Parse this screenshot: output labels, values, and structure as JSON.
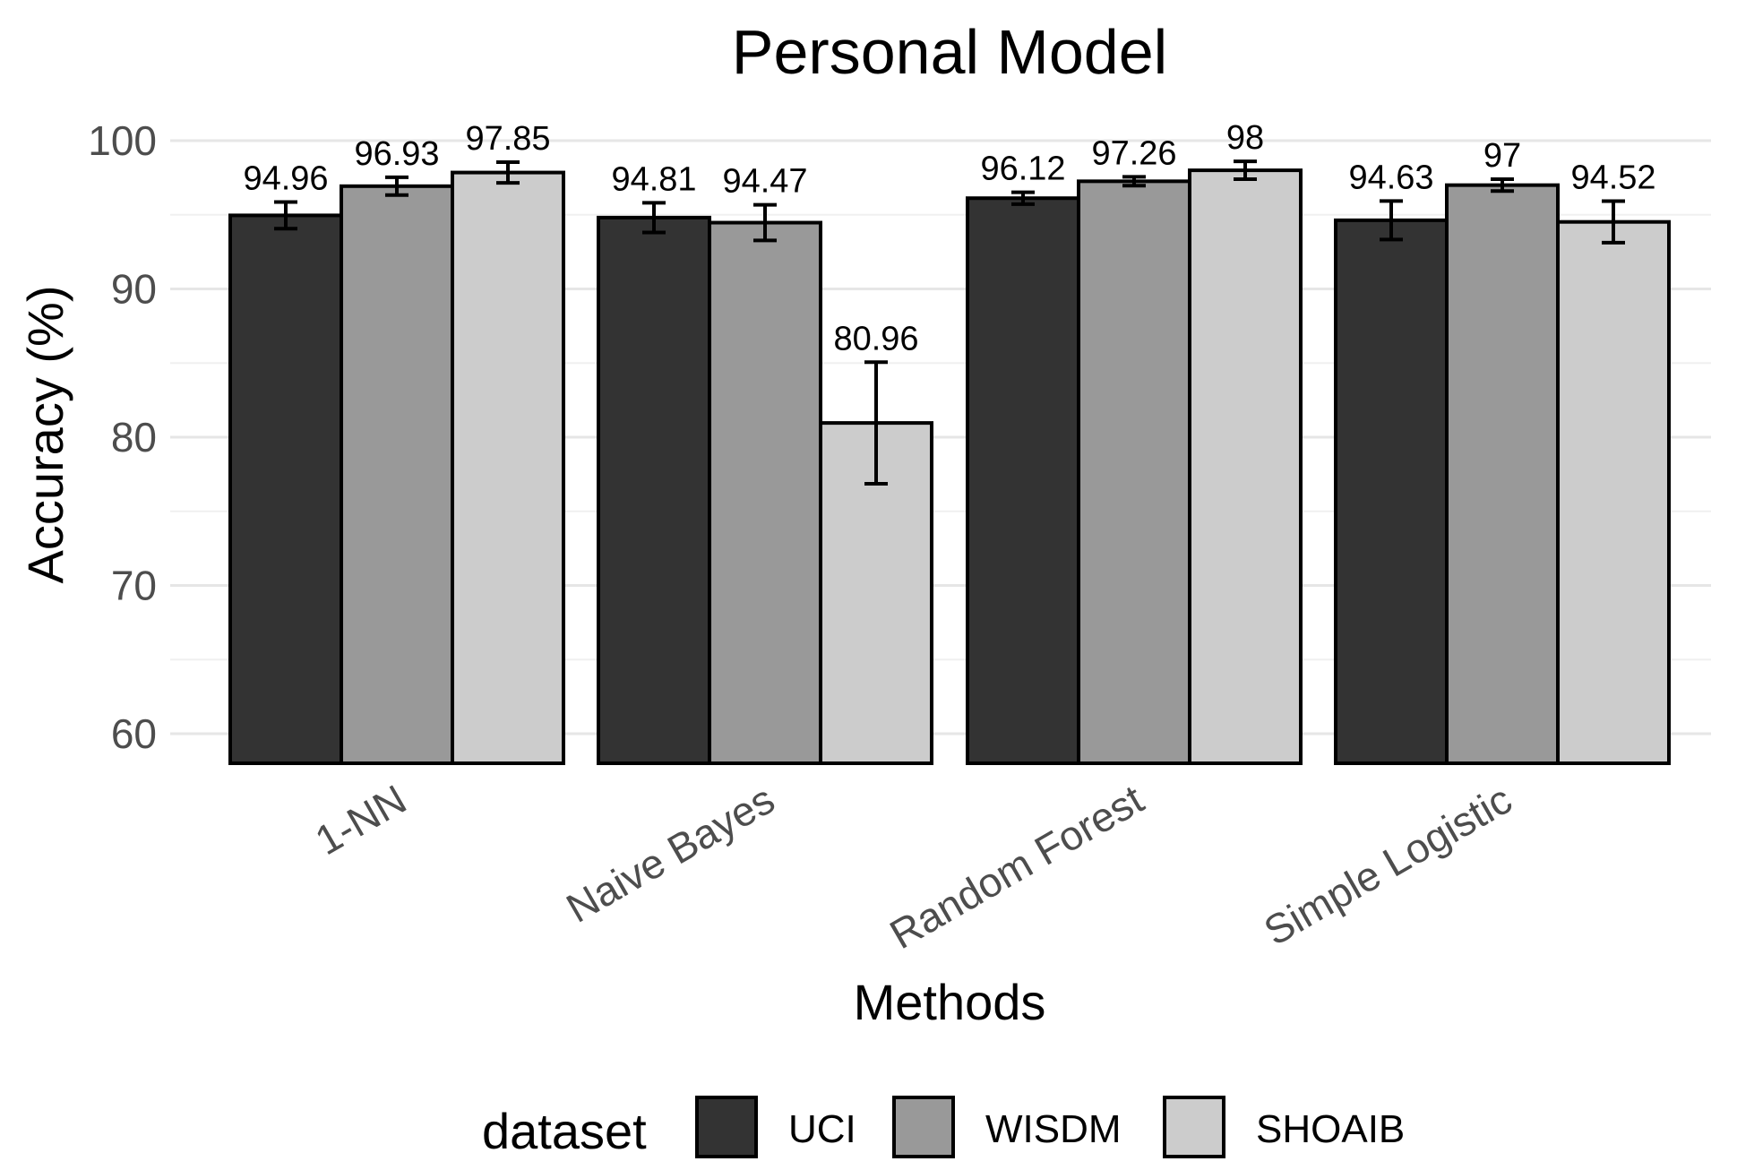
{
  "chart_data": {
    "type": "bar",
    "title": "Personal Model",
    "xlabel": "Methods",
    "ylabel": "Accuracy (%)",
    "ylim": [
      58,
      100
    ],
    "yticks": [
      60,
      70,
      80,
      90,
      100
    ],
    "yticks_labels": [
      "60",
      "70",
      "80",
      "90",
      "100"
    ],
    "grid": true,
    "categories": [
      "1-NN",
      "Naive Bayes",
      "Random Forest",
      "Simple Logistic"
    ],
    "legend": {
      "title": "dataset",
      "position": "bottom"
    },
    "series": [
      {
        "name": "UCI",
        "color": "#333333",
        "values": [
          94.96,
          94.81,
          96.12,
          94.63
        ],
        "labels": [
          "94.96",
          "94.81",
          "96.12",
          "94.63"
        ],
        "err": [
          0.9,
          1.0,
          0.4,
          1.3
        ]
      },
      {
        "name": "WISDM",
        "color": "#999999",
        "values": [
          96.93,
          94.47,
          97.26,
          97.0
        ],
        "labels": [
          "96.93",
          "94.47",
          "97.26",
          "97"
        ],
        "err": [
          0.6,
          1.2,
          0.3,
          0.4
        ]
      },
      {
        "name": "SHOAIB",
        "color": "#cccccc",
        "values": [
          97.85,
          80.96,
          98.0,
          94.52
        ],
        "labels": [
          "97.85",
          "80.96",
          "98",
          "94.52"
        ],
        "err": [
          0.7,
          4.1,
          0.6,
          1.4
        ]
      }
    ]
  }
}
